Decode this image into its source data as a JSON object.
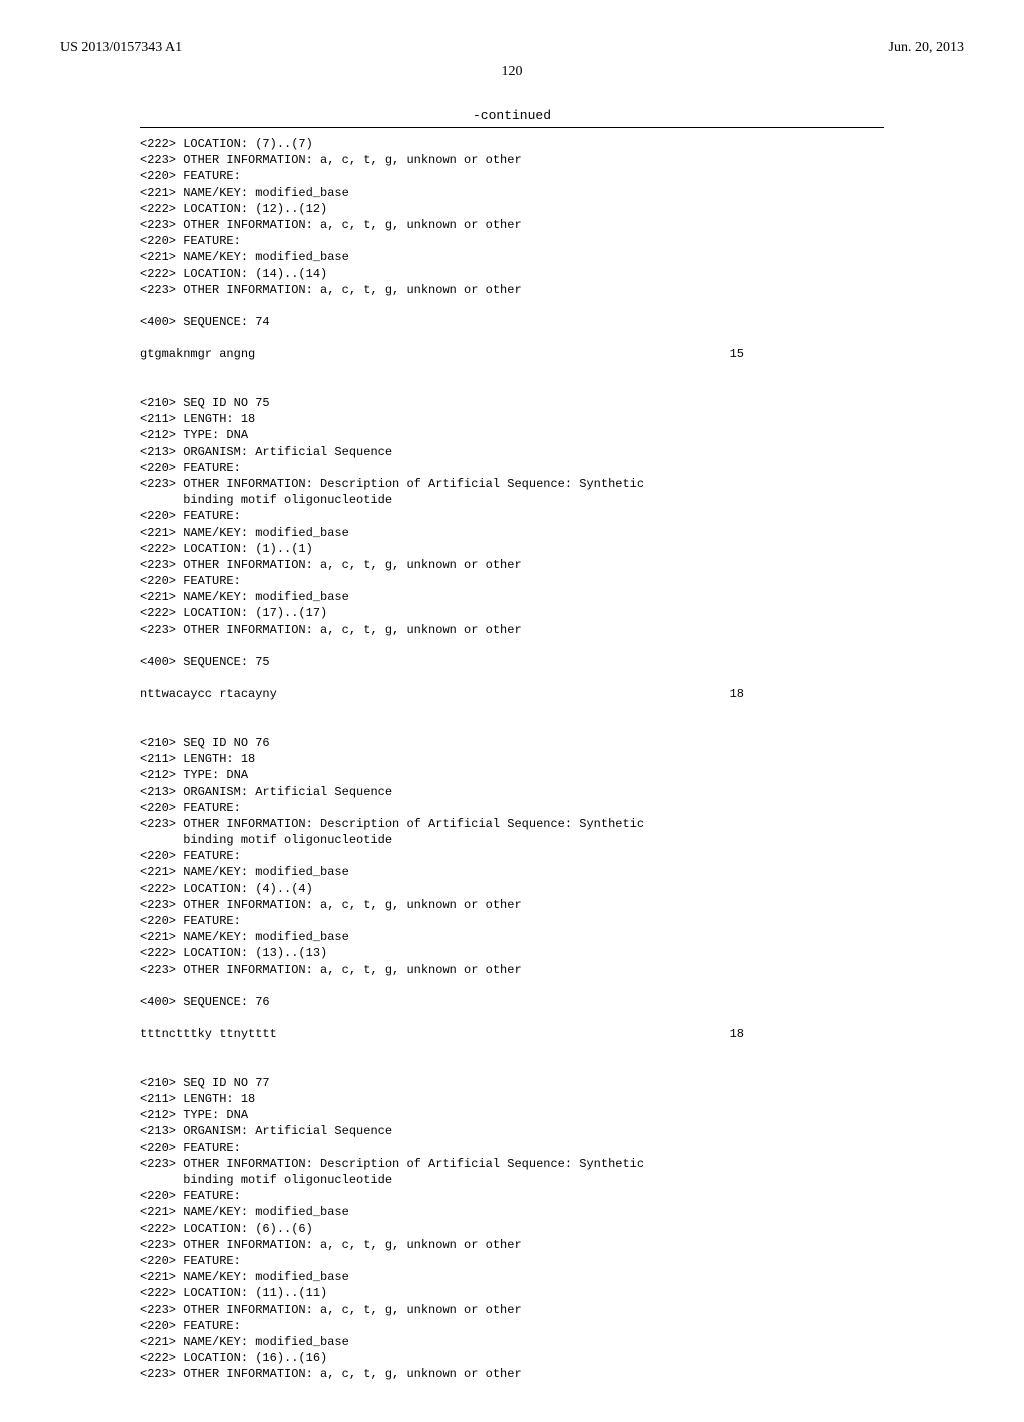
{
  "header": {
    "pub_number": "US 2013/0157343 A1",
    "pub_date": "Jun. 20, 2013"
  },
  "page_number": "120",
  "continued_label": "-continued",
  "lines": [
    "<222> LOCATION: (7)..(7)",
    "<223> OTHER INFORMATION: a, c, t, g, unknown or other",
    "<220> FEATURE:",
    "<221> NAME/KEY: modified_base",
    "<222> LOCATION: (12)..(12)",
    "<223> OTHER INFORMATION: a, c, t, g, unknown or other",
    "<220> FEATURE:",
    "<221> NAME/KEY: modified_base",
    "<222> LOCATION: (14)..(14)",
    "<223> OTHER INFORMATION: a, c, t, g, unknown or other",
    "",
    "<400> SEQUENCE: 74",
    "",
    {
      "left": "gtgmaknmgr angng",
      "right": "15"
    },
    "",
    "",
    "<210> SEQ ID NO 75",
    "<211> LENGTH: 18",
    "<212> TYPE: DNA",
    "<213> ORGANISM: Artificial Sequence",
    "<220> FEATURE:",
    "<223> OTHER INFORMATION: Description of Artificial Sequence: Synthetic",
    "      binding motif oligonucleotide",
    "<220> FEATURE:",
    "<221> NAME/KEY: modified_base",
    "<222> LOCATION: (1)..(1)",
    "<223> OTHER INFORMATION: a, c, t, g, unknown or other",
    "<220> FEATURE:",
    "<221> NAME/KEY: modified_base",
    "<222> LOCATION: (17)..(17)",
    "<223> OTHER INFORMATION: a, c, t, g, unknown or other",
    "",
    "<400> SEQUENCE: 75",
    "",
    {
      "left": "nttwacaycc rtacayny",
      "right": "18"
    },
    "",
    "",
    "<210> SEQ ID NO 76",
    "<211> LENGTH: 18",
    "<212> TYPE: DNA",
    "<213> ORGANISM: Artificial Sequence",
    "<220> FEATURE:",
    "<223> OTHER INFORMATION: Description of Artificial Sequence: Synthetic",
    "      binding motif oligonucleotide",
    "<220> FEATURE:",
    "<221> NAME/KEY: modified_base",
    "<222> LOCATION: (4)..(4)",
    "<223> OTHER INFORMATION: a, c, t, g, unknown or other",
    "<220> FEATURE:",
    "<221> NAME/KEY: modified_base",
    "<222> LOCATION: (13)..(13)",
    "<223> OTHER INFORMATION: a, c, t, g, unknown or other",
    "",
    "<400> SEQUENCE: 76",
    "",
    {
      "left": "tttnctttky ttnytttt",
      "right": "18"
    },
    "",
    "",
    "<210> SEQ ID NO 77",
    "<211> LENGTH: 18",
    "<212> TYPE: DNA",
    "<213> ORGANISM: Artificial Sequence",
    "<220> FEATURE:",
    "<223> OTHER INFORMATION: Description of Artificial Sequence: Synthetic",
    "      binding motif oligonucleotide",
    "<220> FEATURE:",
    "<221> NAME/KEY: modified_base",
    "<222> LOCATION: (6)..(6)",
    "<223> OTHER INFORMATION: a, c, t, g, unknown or other",
    "<220> FEATURE:",
    "<221> NAME/KEY: modified_base",
    "<222> LOCATION: (11)..(11)",
    "<223> OTHER INFORMATION: a, c, t, g, unknown or other",
    "<220> FEATURE:",
    "<221> NAME/KEY: modified_base",
    "<222> LOCATION: (16)..(16)",
    "<223> OTHER INFORMATION: a, c, t, g, unknown or other"
  ]
}
